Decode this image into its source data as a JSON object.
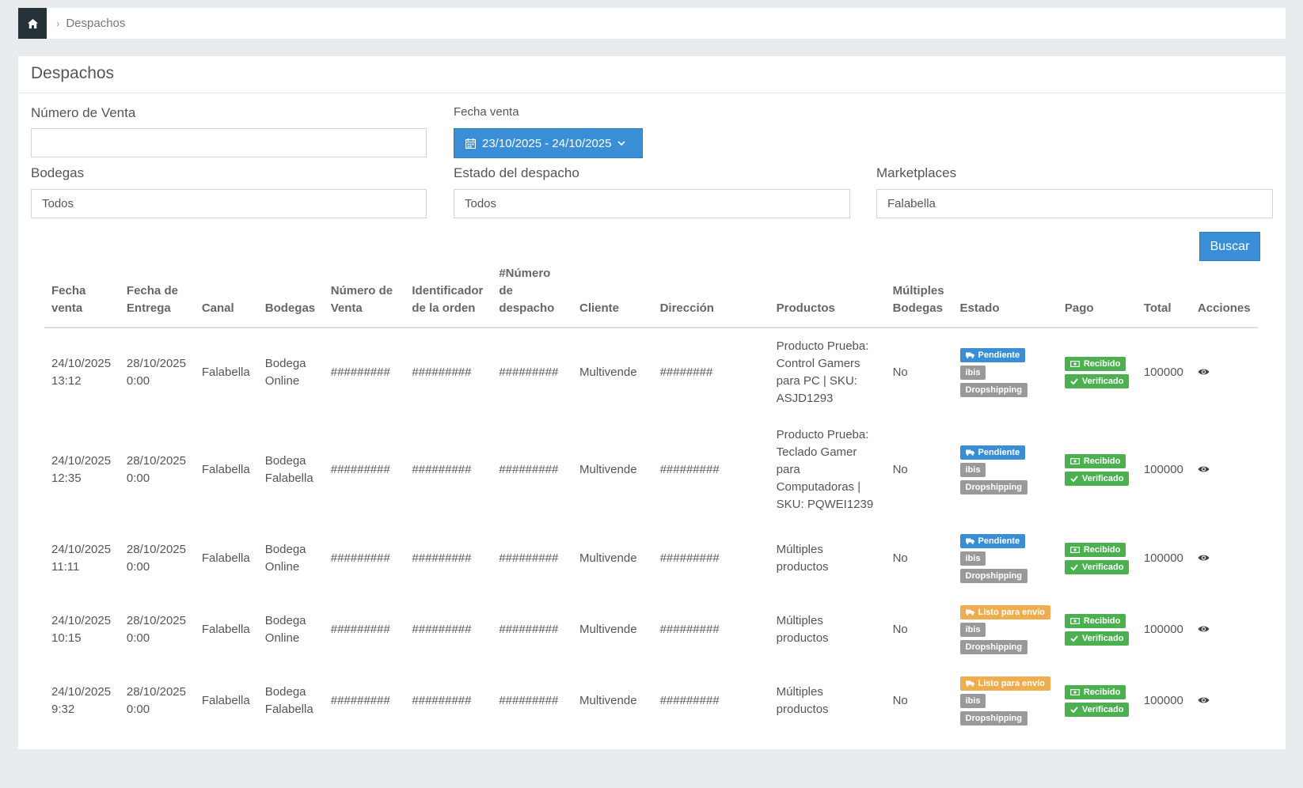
{
  "breadcrumb": {
    "home_icon": "home-icon",
    "separator": "›",
    "current": "Despachos"
  },
  "panel": {
    "title": "Despachos"
  },
  "filters": {
    "numero_venta": {
      "label": "Número de Venta",
      "value": ""
    },
    "fecha_venta": {
      "label": "Fecha venta",
      "value": "23/10/2025 - 24/10/2025"
    },
    "bodegas": {
      "label": "Bodegas",
      "value": "Todos"
    },
    "estado": {
      "label": "Estado del despacho",
      "value": "Todos"
    },
    "marketplaces": {
      "label": "Marketplaces",
      "value": "Falabella"
    },
    "buscar_label": "Buscar"
  },
  "table": {
    "headers": {
      "fecha_venta": "Fecha venta",
      "fecha_entrega": "Fecha de Entrega",
      "canal": "Canal",
      "bodegas": "Bodegas",
      "numero_venta": "Número de Venta",
      "identificador": "Identificador de la orden",
      "numero_despacho": "#Número de despacho",
      "cliente": "Cliente",
      "direccion": "Dirección",
      "productos": "Productos",
      "multiples_bodegas": "Múltiples Bodegas",
      "estado": "Estado",
      "pago": "Pago",
      "total": "Total",
      "acciones": "Acciones"
    },
    "rows": [
      {
        "fecha_venta": [
          "24/10/2025",
          "13:12"
        ],
        "fecha_entrega": [
          "28/10/2025",
          "0:00"
        ],
        "canal": "Falabella",
        "bodega": [
          "Bodega",
          "Online"
        ],
        "numero_venta": "#########",
        "identificador": "#########",
        "numero_despacho": "#########",
        "cliente": "Multivende",
        "direccion": "########",
        "productos": "Producto Prueba: Control Gamers para PC | SKU: ASJD1293",
        "multiples_bodegas": "No",
        "estado": {
          "status": "Pendiente",
          "status_color": "blue",
          "tag": "ibis",
          "type": "Dropshipping"
        },
        "pago": {
          "recibido": "Recibido",
          "verificado": "Verificado"
        },
        "total": "100000"
      },
      {
        "fecha_venta": [
          "24/10/2025",
          "12:35"
        ],
        "fecha_entrega": [
          "28/10/2025",
          "0:00"
        ],
        "canal": "Falabella",
        "bodega": [
          "Bodega",
          "Falabella"
        ],
        "numero_venta": "#########",
        "identificador": "#########",
        "numero_despacho": "#########",
        "cliente": "Multivende",
        "direccion": "#########",
        "productos": "Producto Prueba: Teclado Gamer para Computadoras | SKU: PQWEI1239",
        "multiples_bodegas": "No",
        "estado": {
          "status": "Pendiente",
          "status_color": "blue",
          "tag": "ibis",
          "type": "Dropshipping"
        },
        "pago": {
          "recibido": "Recibido",
          "verificado": "Verificado"
        },
        "total": "100000"
      },
      {
        "fecha_venta": [
          "24/10/2025",
          "11:11"
        ],
        "fecha_entrega": [
          "28/10/2025",
          "0:00"
        ],
        "canal": "Falabella",
        "bodega": [
          "Bodega",
          "Online"
        ],
        "numero_venta": "#########",
        "identificador": "#########",
        "numero_despacho": "#########",
        "cliente": "Multivende",
        "direccion": "#########",
        "productos": "Múltiples productos",
        "multiples_bodegas": "No",
        "estado": {
          "status": "Pendiente",
          "status_color": "blue",
          "tag": "ibis",
          "type": "Dropshipping"
        },
        "pago": {
          "recibido": "Recibido",
          "verificado": "Verificado"
        },
        "total": "100000"
      },
      {
        "fecha_venta": [
          "24/10/2025",
          "10:15"
        ],
        "fecha_entrega": [
          "28/10/2025",
          "0:00"
        ],
        "canal": "Falabella",
        "bodega": [
          "Bodega",
          "Online"
        ],
        "numero_venta": "#########",
        "identificador": "#########",
        "numero_despacho": "#########",
        "cliente": "Multivende",
        "direccion": "#########",
        "productos": "Múltiples productos",
        "multiples_bodegas": "No",
        "estado": {
          "status": "Listo para envío",
          "status_color": "orange",
          "tag": "ibis",
          "type": "Dropshipping"
        },
        "pago": {
          "recibido": "Recibido",
          "verificado": "Verificado"
        },
        "total": "100000"
      },
      {
        "fecha_venta": [
          "24/10/2025",
          "9:32"
        ],
        "fecha_entrega": [
          "28/10/2025",
          "0:00"
        ],
        "canal": "Falabella",
        "bodega": [
          "Bodega",
          "Falabella"
        ],
        "numero_venta": "#########",
        "identificador": "#########",
        "numero_despacho": "#########",
        "cliente": "Multivende",
        "direccion": "#########",
        "productos": "Múltiples productos",
        "multiples_bodegas": "No",
        "estado": {
          "status": "Listo para envío",
          "status_color": "orange",
          "tag": "ibis",
          "type": "Dropshipping"
        },
        "pago": {
          "recibido": "Recibido",
          "verificado": "Verificado"
        },
        "total": "100000"
      }
    ]
  },
  "colors": {
    "primary": "#3a8ed6",
    "warning": "#f0ad4e",
    "success": "#4cb050",
    "muted": "#999999",
    "dark": "#263238"
  }
}
